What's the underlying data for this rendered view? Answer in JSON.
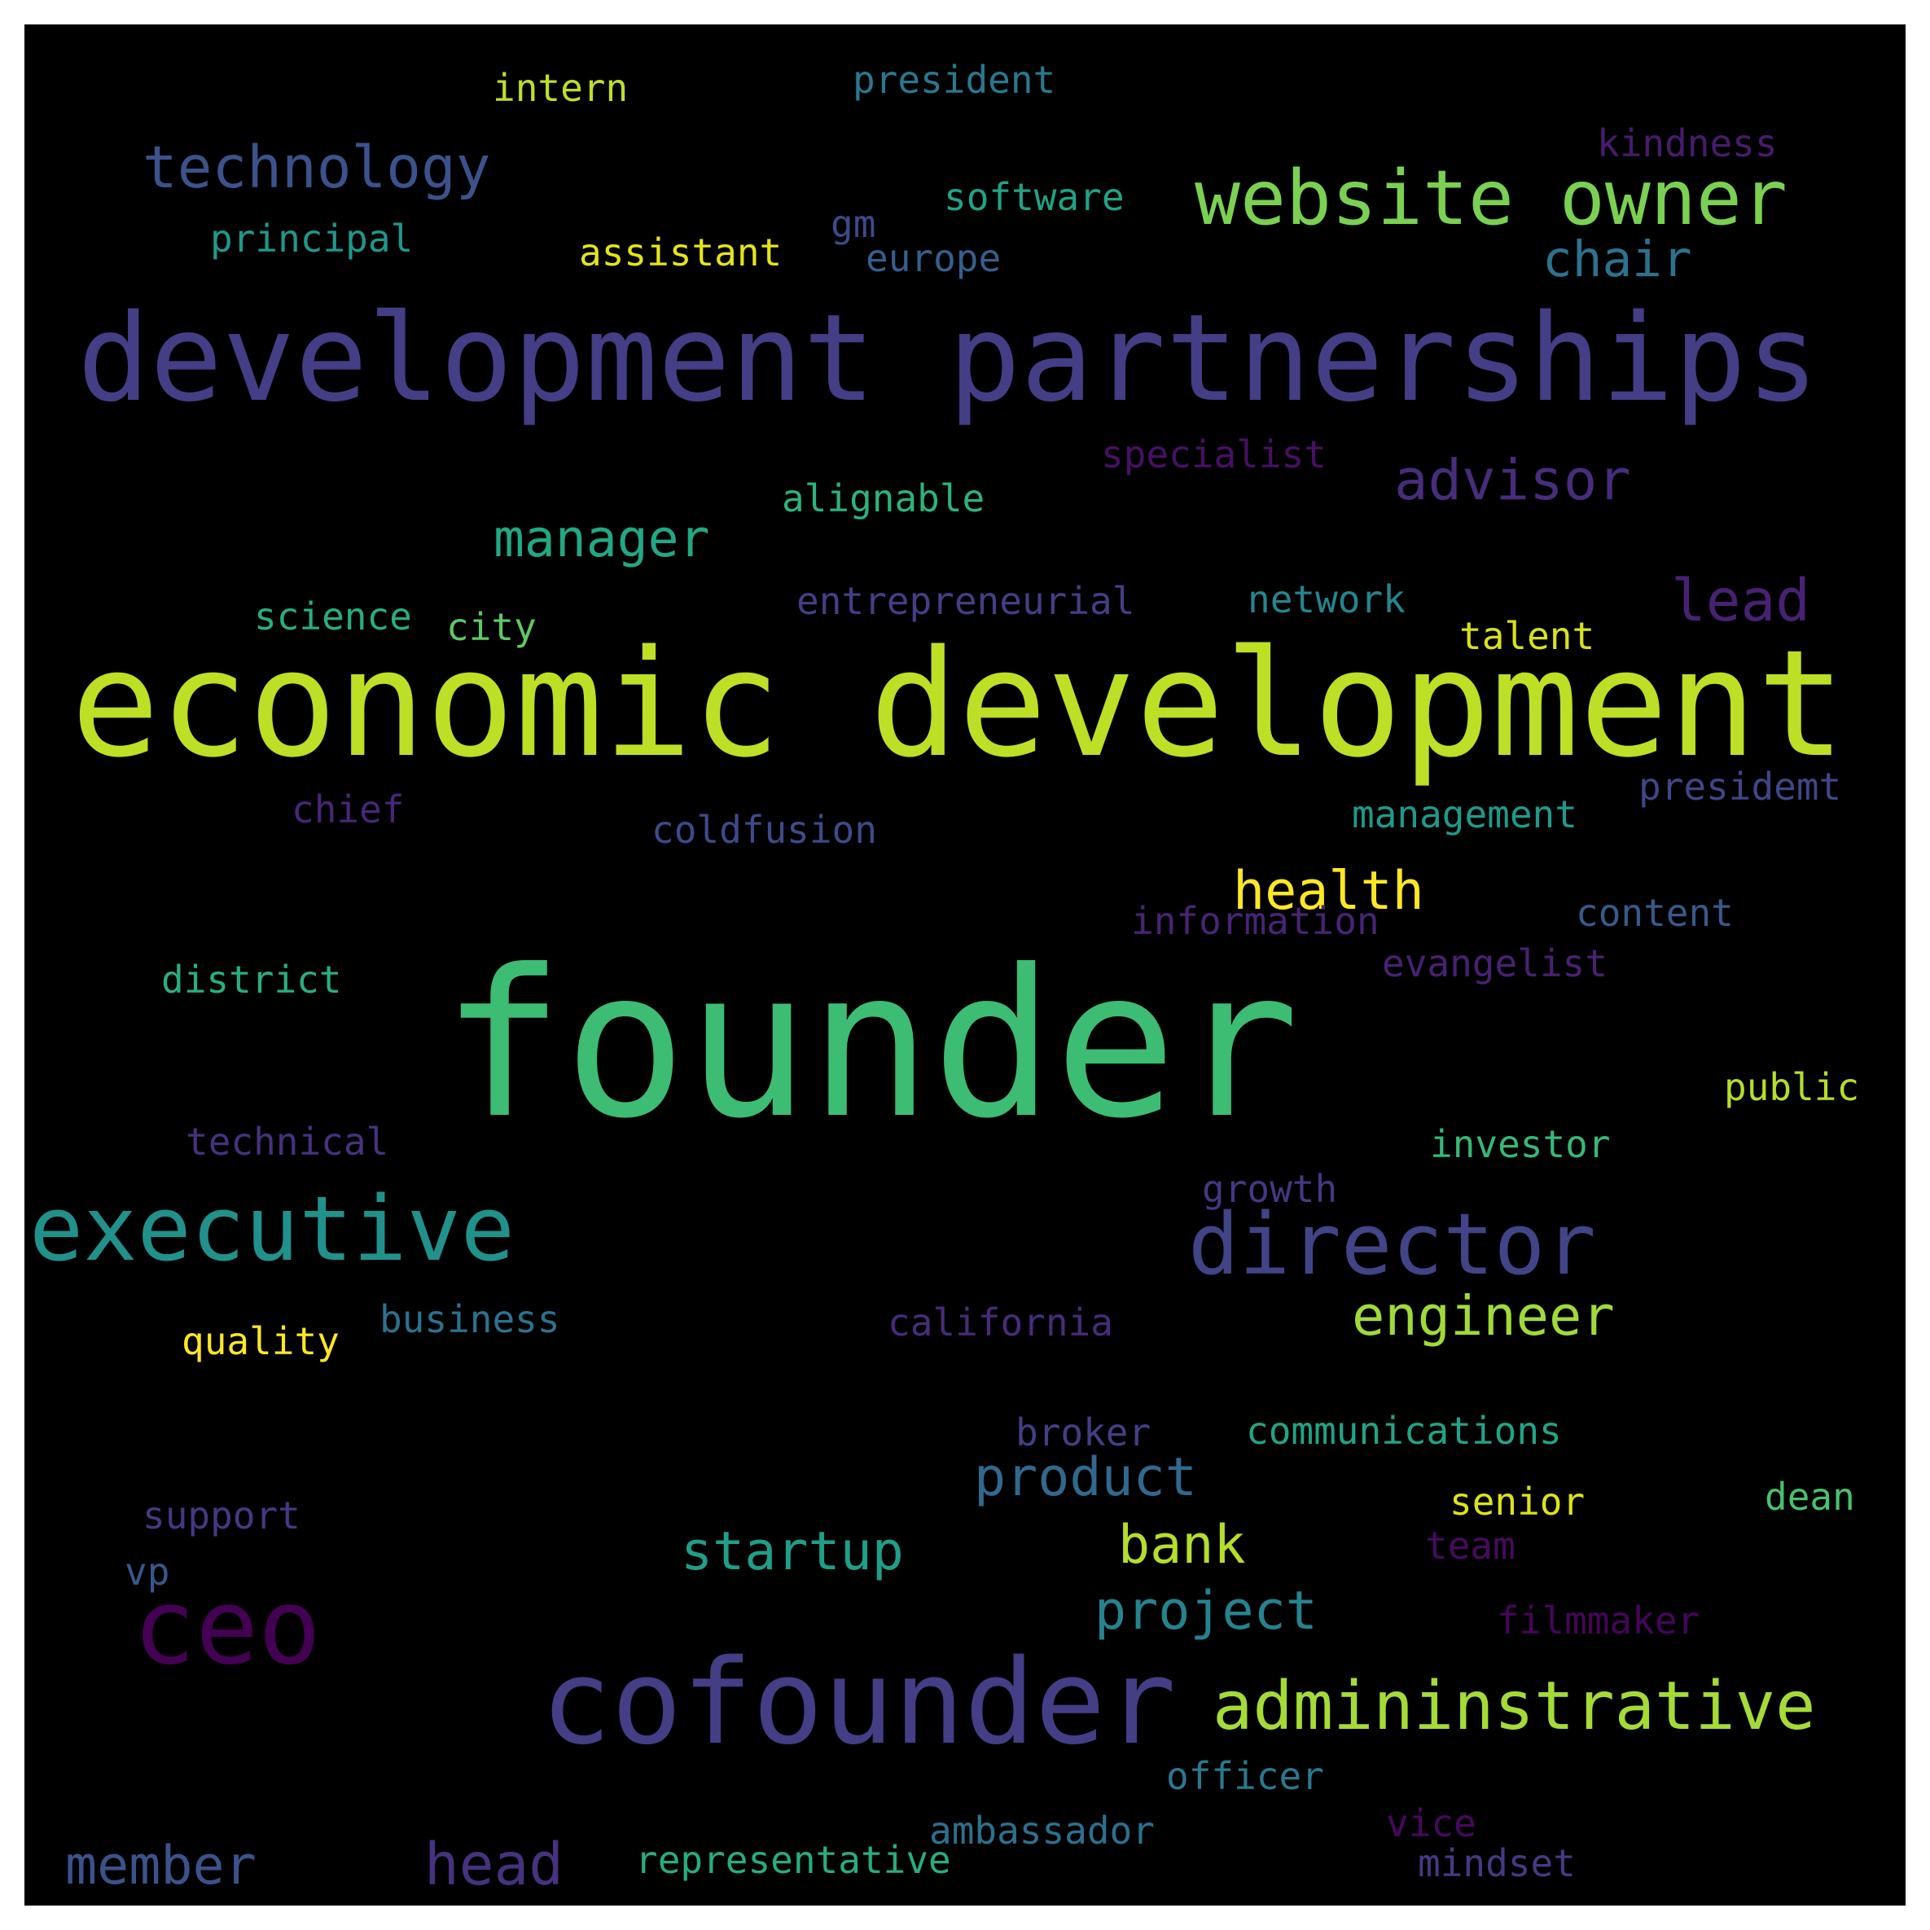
{
  "words": [
    {
      "text": "founder",
      "color": "#3dbc74"
    },
    {
      "text": "economic development",
      "color": "#bddf26"
    },
    {
      "text": "development partnerships",
      "color": "#433e85"
    },
    {
      "text": "cofounder",
      "color": "#433e85"
    },
    {
      "text": "ceo",
      "color": "#440154"
    },
    {
      "text": "executive",
      "color": "#21918c"
    },
    {
      "text": "director",
      "color": "#414487"
    },
    {
      "text": "website owner",
      "color": "#7ad151"
    },
    {
      "text": "admininstrative",
      "color": "#a5db36"
    },
    {
      "text": "technology",
      "color": "#3b528b"
    },
    {
      "text": "advisor",
      "color": "#472d7b"
    },
    {
      "text": "manager",
      "color": "#22a884"
    },
    {
      "text": "lead",
      "color": "#482173"
    },
    {
      "text": "health",
      "color": "#fde725"
    },
    {
      "text": "engineer",
      "color": "#a0da39"
    },
    {
      "text": "product",
      "color": "#31688e"
    },
    {
      "text": "startup",
      "color": "#1f9e89"
    },
    {
      "text": "bank",
      "color": "#b5de2b"
    },
    {
      "text": "project",
      "color": "#26828e"
    },
    {
      "text": "member",
      "color": "#3b528b"
    },
    {
      "text": "head",
      "color": "#46327e"
    },
    {
      "text": "chair",
      "color": "#2c728e"
    },
    {
      "text": "intern",
      "color": "#bddf26"
    },
    {
      "text": "president",
      "color": "#2a788e"
    },
    {
      "text": "kindness",
      "color": "#481b6d"
    },
    {
      "text": "software",
      "color": "#20a386"
    },
    {
      "text": "principal",
      "color": "#1f988b"
    },
    {
      "text": "assistant",
      "color": "#e5e419"
    },
    {
      "text": "gm",
      "color": "#3e4989"
    },
    {
      "text": "europe",
      "color": "#355f8d"
    },
    {
      "text": "specialist",
      "color": "#471063"
    },
    {
      "text": "alignable",
      "color": "#2db27d"
    },
    {
      "text": "science",
      "color": "#28ae80"
    },
    {
      "text": "city",
      "color": "#5ec962"
    },
    {
      "text": "entrepreneurial",
      "color": "#433e85"
    },
    {
      "text": "network",
      "color": "#25858e"
    },
    {
      "text": "talent",
      "color": "#d8e219"
    },
    {
      "text": "chief",
      "color": "#482677"
    },
    {
      "text": "coldfusion",
      "color": "#3e4a89"
    },
    {
      "text": "management",
      "color": "#1f9a8a"
    },
    {
      "text": "presidemt",
      "color": "#404688"
    },
    {
      "text": "content",
      "color": "#38598c"
    },
    {
      "text": "information",
      "color": "#482475"
    },
    {
      "text": "evangelist",
      "color": "#482173"
    },
    {
      "text": "district",
      "color": "#29af7f"
    },
    {
      "text": "public",
      "color": "#b5de2b"
    },
    {
      "text": "technical",
      "color": "#46327e"
    },
    {
      "text": "investor",
      "color": "#37b878"
    },
    {
      "text": "growth",
      "color": "#453781"
    },
    {
      "text": "business",
      "color": "#2c728e"
    },
    {
      "text": "quality",
      "color": "#fde725"
    },
    {
      "text": "california",
      "color": "#472c7a"
    },
    {
      "text": "broker",
      "color": "#423f85"
    },
    {
      "text": "communications",
      "color": "#20a486"
    },
    {
      "text": "support",
      "color": "#453882"
    },
    {
      "text": "senior",
      "color": "#dde318"
    },
    {
      "text": "dean",
      "color": "#4ac16d"
    },
    {
      "text": "vp",
      "color": "#39568c"
    },
    {
      "text": "team",
      "color": "#460b5e"
    },
    {
      "text": "filmmaker",
      "color": "#450559"
    },
    {
      "text": "officer",
      "color": "#2a788e"
    },
    {
      "text": "vice",
      "color": "#46085c"
    },
    {
      "text": "ambassador",
      "color": "#2d708e"
    },
    {
      "text": "representative",
      "color": "#27ad81"
    },
    {
      "text": "mindset",
      "color": "#443a83"
    }
  ]
}
